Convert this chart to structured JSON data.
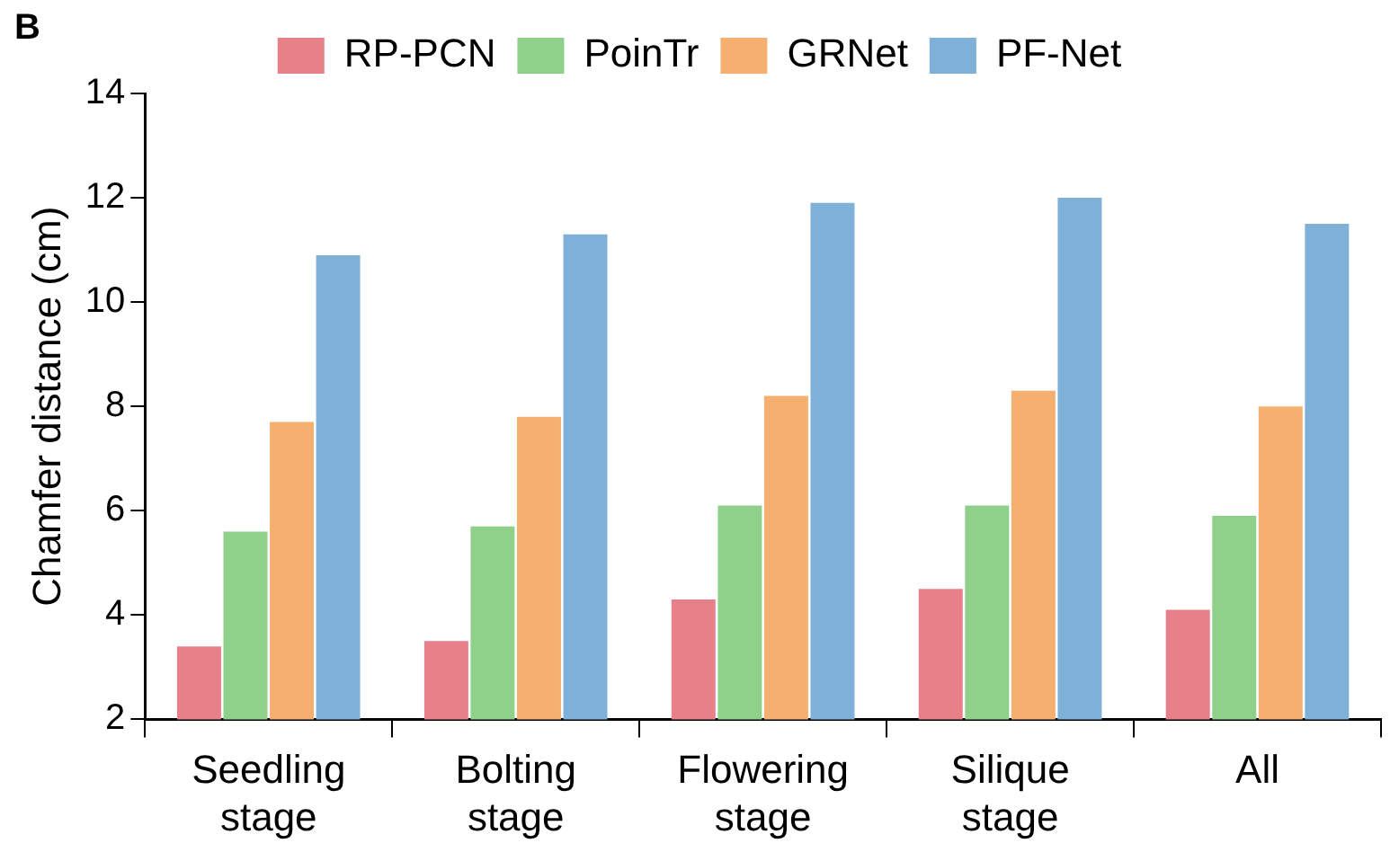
{
  "chart_data": {
    "type": "bar",
    "ylabel": "Chamfer distance (cm)",
    "annotations": [
      "B"
    ],
    "categories": [
      "Seedling stage",
      "Bolting stage",
      "Flowering stage",
      "Silique stage",
      "All"
    ],
    "series": [
      {
        "name": "RP-PCN",
        "color": "#e8808a",
        "values": [
          3.4,
          3.5,
          4.3,
          4.5,
          4.1
        ]
      },
      {
        "name": "PoinTr",
        "color": "#8fd18a",
        "values": [
          5.6,
          5.7,
          6.1,
          6.1,
          5.9
        ]
      },
      {
        "name": "GRNet",
        "color": "#f5b070",
        "values": [
          7.7,
          7.8,
          8.2,
          8.3,
          8.0
        ]
      },
      {
        "name": "PF-Net",
        "color": "#7fb0d8",
        "values": [
          10.9,
          11.3,
          11.9,
          12.0,
          11.5
        ]
      }
    ],
    "ylim": [
      2,
      14
    ],
    "yticks": [
      2,
      4,
      6,
      8,
      10,
      12,
      14
    ],
    "grid": false,
    "legend": "top"
  }
}
